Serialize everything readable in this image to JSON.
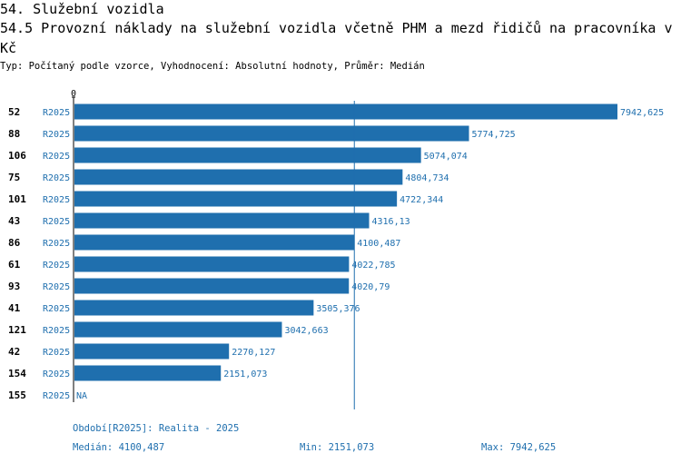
{
  "header": {
    "title": "54. Služební vozidla",
    "subtitle": "54.5 Provozní náklady na služební vozidla včetně PHM a mezd řidičů na pracovníka v Kč",
    "meta": "Typ: Počítaný podle vzorce, Vyhodnocení: Absolutní hodnoty, Průměr: Medián"
  },
  "footer": {
    "period": "Období[R2025]: Realita - 2025",
    "median": "Medián: 4100,487",
    "min": "Min: 2151,073",
    "max": "Max: 7942,625"
  },
  "chart_data": {
    "type": "bar",
    "orientation": "horizontal",
    "categories": [
      "52",
      "88",
      "106",
      "75",
      "101",
      "43",
      "86",
      "61",
      "93",
      "41",
      "121",
      "42",
      "154",
      "155"
    ],
    "period_labels": [
      "R2025",
      "R2025",
      "R2025",
      "R2025",
      "R2025",
      "R2025",
      "R2025",
      "R2025",
      "R2025",
      "R2025",
      "R2025",
      "R2025",
      "R2025",
      "R2025"
    ],
    "values": [
      7942.625,
      5774.725,
      5074.074,
      4804.734,
      4722.344,
      4316.13,
      4100.487,
      4022.785,
      4020.79,
      3505.376,
      3042.663,
      2270.127,
      2151.073,
      null
    ],
    "value_labels": [
      "7942,625",
      "5774,725",
      "5074,074",
      "4804,734",
      "4722,344",
      "4316,13",
      "4100,487",
      "4022,785",
      "4020,79",
      "3505,376",
      "3042,663",
      "2270,127",
      "2151,073",
      "NA"
    ],
    "axis_tick_label": "0",
    "xlim": [
      0,
      7942.625
    ],
    "median": 4100.487,
    "colors": {
      "bar": "#1f6fae",
      "text": "#1f6fae",
      "axis": "#000000"
    }
  }
}
